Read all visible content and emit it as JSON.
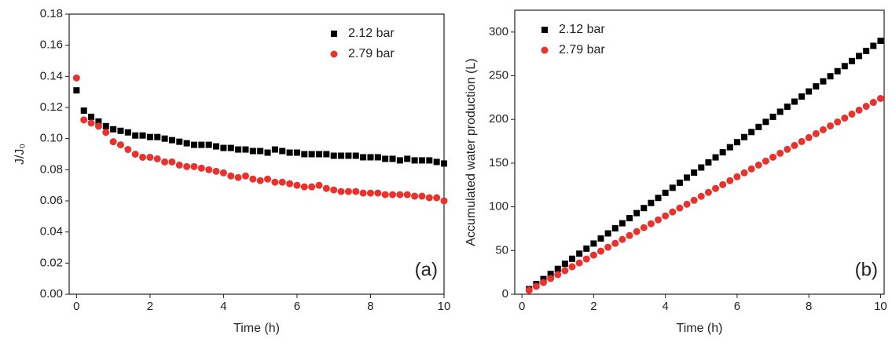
{
  "chart_data": [
    {
      "type": "scatter",
      "annotation": "(a)",
      "xlabel": "Time (h)",
      "ylabel": "J/J₀",
      "xlim": [
        -0.2,
        10
      ],
      "ylim": [
        0,
        0.18
      ],
      "xticks": [
        0,
        2,
        4,
        6,
        8,
        10
      ],
      "yticks": [
        {
          "value": 0,
          "label": "0.00"
        },
        0.02,
        0.04,
        0.06,
        0.08,
        {
          "value": 0.1,
          "label": "0.10"
        },
        0.12,
        0.14,
        0.16,
        0.18
      ],
      "legend": "upper right",
      "x": [
        0,
        0.2,
        0.4,
        0.6,
        0.8,
        1,
        1.2,
        1.4,
        1.6,
        1.8,
        2,
        2.2,
        2.4,
        2.6,
        2.8,
        3,
        3.2,
        3.4,
        3.6,
        3.8,
        4,
        4.2,
        4.4,
        4.6,
        4.8,
        5,
        5.2,
        5.4,
        5.6,
        5.8,
        6,
        6.2,
        6.4,
        6.6,
        6.8,
        7,
        7.2,
        7.4,
        7.6,
        7.8,
        8,
        8.2,
        8.4,
        8.6,
        8.8,
        9,
        9.2,
        9.4,
        9.6,
        9.8,
        10
      ],
      "series": [
        {
          "name": "2.12 bar",
          "color": "#000000",
          "marker": "square",
          "values": [
            0.131,
            0.118,
            0.114,
            0.111,
            0.108,
            0.106,
            0.105,
            0.104,
            0.102,
            0.102,
            0.101,
            0.101,
            0.1,
            0.099,
            0.098,
            0.097,
            0.096,
            0.096,
            0.096,
            0.095,
            0.094,
            0.094,
            0.093,
            0.093,
            0.092,
            0.092,
            0.091,
            0.093,
            0.092,
            0.091,
            0.091,
            0.09,
            0.09,
            0.09,
            0.09,
            0.089,
            0.089,
            0.089,
            0.089,
            0.088,
            0.088,
            0.088,
            0.087,
            0.087,
            0.086,
            0.087,
            0.086,
            0.086,
            0.086,
            0.085,
            0.084
          ]
        },
        {
          "name": "2.79 bar",
          "color": "#e8322e",
          "marker": "circle",
          "values": [
            0.139,
            0.112,
            0.11,
            0.108,
            0.104,
            0.098,
            0.096,
            0.093,
            0.09,
            0.088,
            0.088,
            0.087,
            0.085,
            0.085,
            0.083,
            0.082,
            0.082,
            0.081,
            0.08,
            0.079,
            0.078,
            0.076,
            0.075,
            0.076,
            0.074,
            0.073,
            0.074,
            0.072,
            0.072,
            0.071,
            0.07,
            0.069,
            0.069,
            0.07,
            0.068,
            0.067,
            0.066,
            0.066,
            0.066,
            0.065,
            0.065,
            0.065,
            0.064,
            0.064,
            0.064,
            0.064,
            0.063,
            0.063,
            0.062,
            0.062,
            0.06
          ]
        }
      ]
    },
    {
      "type": "scatter",
      "annotation": "(b)",
      "xlabel": "Time (h)",
      "ylabel": "Accumulated water production (L)",
      "xlim": [
        -0.2,
        10.1
      ],
      "ylim": [
        0,
        325
      ],
      "xticks": [
        0,
        2,
        4,
        6,
        8,
        10
      ],
      "yticks": [
        0,
        50,
        100,
        150,
        200,
        250,
        300
      ],
      "legend": "upper left",
      "x": [
        0.2,
        0.4,
        0.6,
        0.8,
        1,
        1.2,
        1.4,
        1.6,
        1.8,
        2,
        2.2,
        2.4,
        2.6,
        2.8,
        3,
        3.2,
        3.4,
        3.6,
        3.8,
        4,
        4.2,
        4.4,
        4.6,
        4.8,
        5,
        5.2,
        5.4,
        5.6,
        5.8,
        6,
        6.2,
        6.4,
        6.6,
        6.8,
        7,
        7.2,
        7.4,
        7.6,
        7.8,
        8,
        8.2,
        8.4,
        8.6,
        8.8,
        9,
        9.2,
        9.4,
        9.6,
        9.8,
        10
      ],
      "series": [
        {
          "name": "2.12 bar",
          "color": "#000000",
          "marker": "square",
          "values": [
            5.8,
            11.6,
            17.4,
            23.2,
            29,
            34.8,
            40.6,
            46.4,
            52.2,
            58,
            63.8,
            69.6,
            75.4,
            81.2,
            87,
            92.8,
            98.6,
            104.4,
            110.2,
            116,
            121.8,
            127.6,
            133.4,
            139.2,
            145,
            150.8,
            156.6,
            162.4,
            168.2,
            174,
            179.8,
            185.6,
            191.4,
            197.2,
            203,
            208.8,
            214.6,
            220.4,
            226.2,
            232,
            237.8,
            243.6,
            249.4,
            255.2,
            261,
            266.8,
            272.6,
            278.4,
            284.2,
            290
          ]
        },
        {
          "name": "2.79 bar",
          "color": "#e8322e",
          "marker": "circle",
          "values": [
            4.5,
            9,
            13.4,
            17.9,
            22.4,
            26.9,
            31.4,
            35.8,
            40.3,
            44.8,
            49.3,
            53.8,
            58.2,
            62.7,
            67.2,
            71.7,
            76.2,
            80.6,
            85.1,
            89.6,
            94.1,
            98.6,
            103,
            107.5,
            112,
            116.5,
            121,
            125.4,
            129.9,
            134.4,
            138.9,
            143.4,
            147.8,
            152.3,
            156.8,
            161.3,
            165.8,
            170.2,
            174.7,
            179.2,
            183.7,
            188.2,
            192.6,
            197.1,
            201.6,
            206.1,
            210.6,
            215,
            219.5,
            224
          ]
        }
      ]
    }
  ]
}
